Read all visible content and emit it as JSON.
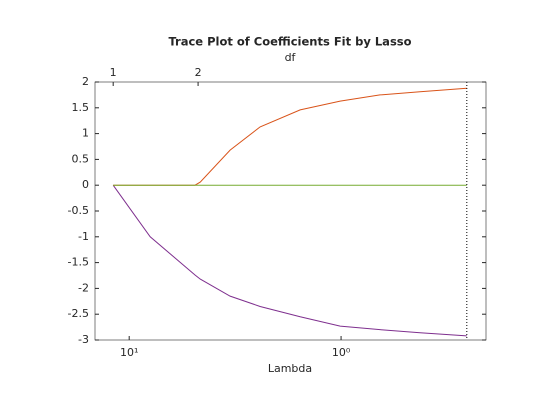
{
  "chart_data": {
    "type": "line",
    "title": "Trace Plot of Coefficients Fit by Lasso",
    "x2label": "df",
    "xlabel": "Lambda",
    "xscale": "log",
    "xdir": "reverse",
    "xlim": [
      14.5,
      0.207
    ],
    "xticks": [
      {
        "value": 10,
        "label": "10¹"
      },
      {
        "value": 1,
        "label": "10⁰"
      }
    ],
    "x2ticks": [
      {
        "value": 11.9,
        "label": "1"
      },
      {
        "value": 4.73,
        "label": "2"
      }
    ],
    "ylim": [
      -3,
      2
    ],
    "yticks": [
      2,
      1.5,
      1,
      0.5,
      0,
      -0.5,
      -1,
      -1.5,
      -2,
      -2.5,
      -3
    ],
    "vline": 0.255,
    "x": [
      11.9,
      7.96,
      4.89,
      4.62,
      3.34,
      2.41,
      1.56,
      1.01,
      0.655,
      0.424,
      0.255
    ],
    "series": [
      {
        "color": "#7e2f8e",
        "values": [
          0,
          -1.0,
          -1.74,
          -1.82,
          -2.15,
          -2.35,
          -2.55,
          -2.73,
          -2.8,
          -2.86,
          -2.92
        ]
      },
      {
        "color": "#d95319",
        "values": [
          0,
          0,
          0,
          0.06,
          0.68,
          1.13,
          1.46,
          1.63,
          1.75,
          1.81,
          1.88
        ]
      },
      {
        "color": "#77ac30",
        "values": [
          0,
          0,
          0,
          0,
          0,
          0,
          0,
          0,
          0,
          0,
          0
        ]
      }
    ]
  }
}
